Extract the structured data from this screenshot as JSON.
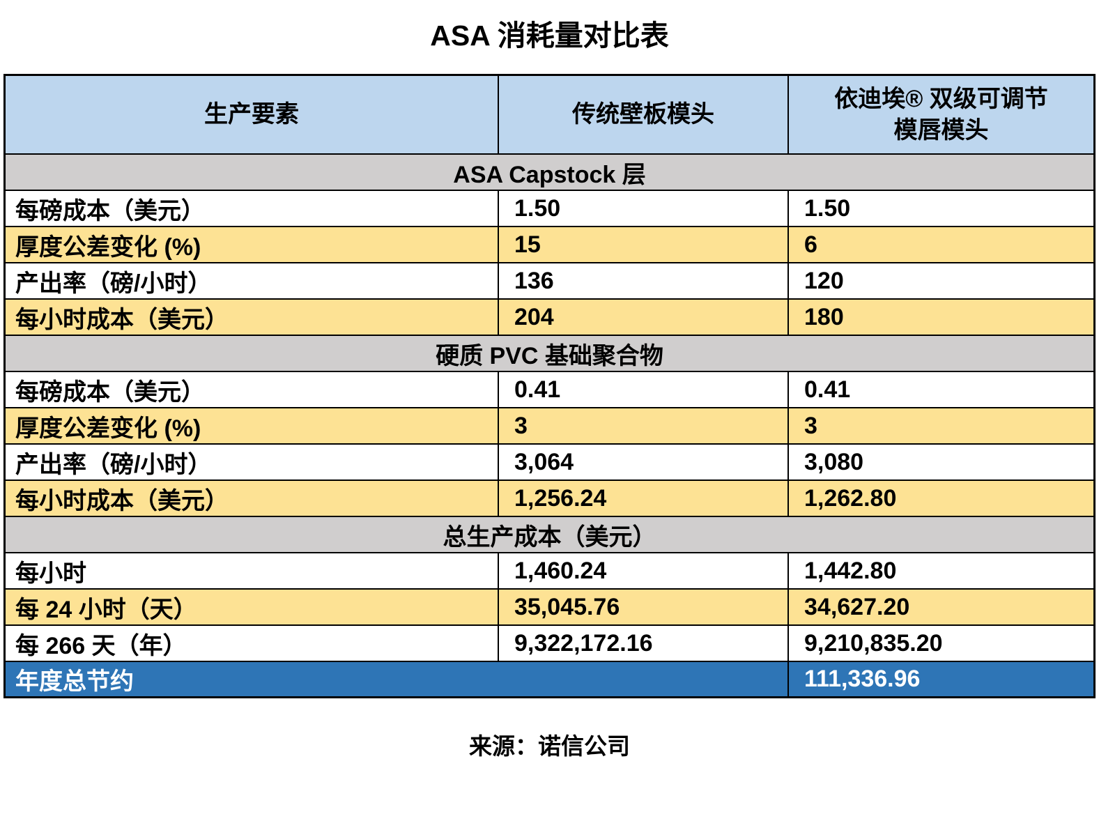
{
  "title": "ASA 消耗量对比表",
  "source": "来源：诺信公司",
  "colors": {
    "header_blue": "#BDD6EE",
    "section_gray": "#D0CECE",
    "row_yellow": "#FDE294",
    "row_white": "#FFFFFF",
    "savings_blue": "#2E75B6",
    "border_black": "#000000"
  },
  "table": {
    "columns": [
      {
        "label": "生产要素"
      },
      {
        "label": "传统壁板模头"
      },
      {
        "line1": "依迪埃® 双级可调节",
        "line2": "模唇模头"
      }
    ],
    "sections": [
      {
        "header": "ASA Capstock 层",
        "rows": [
          {
            "label": "每磅成本（美元）",
            "traditional": "1.50",
            "edi": "1.50"
          },
          {
            "label": "厚度公差变化 (%)",
            "traditional": "15",
            "edi": "6"
          },
          {
            "label": "产出率（磅/小时）",
            "traditional": "136",
            "edi": "120"
          },
          {
            "label": "每小时成本（美元）",
            "traditional": "204",
            "edi": "180"
          }
        ]
      },
      {
        "header": "硬质 PVC 基础聚合物",
        "rows": [
          {
            "label": "每磅成本（美元）",
            "traditional": "0.41",
            "edi": "0.41"
          },
          {
            "label": "厚度公差变化 (%)",
            "traditional": "3",
            "edi": "3"
          },
          {
            "label": "产出率（磅/小时）",
            "traditional": "3,064",
            "edi": "3,080"
          },
          {
            "label": "每小时成本（美元）",
            "traditional": "1,256.24",
            "edi": "1,262.80"
          }
        ]
      },
      {
        "header": "总生产成本（美元）",
        "rows": [
          {
            "label": "每小时",
            "traditional": "1,460.24",
            "edi": "1,442.80"
          },
          {
            "label": "每 24 小时（天）",
            "traditional": "35,045.76",
            "edi": "34,627.20"
          },
          {
            "label": "每 266 天（年）",
            "traditional": "9,322,172.16",
            "edi": "9,210,835.20"
          }
        ]
      }
    ],
    "savings": {
      "label": "年度总节约",
      "edi": "111,336.96"
    }
  }
}
